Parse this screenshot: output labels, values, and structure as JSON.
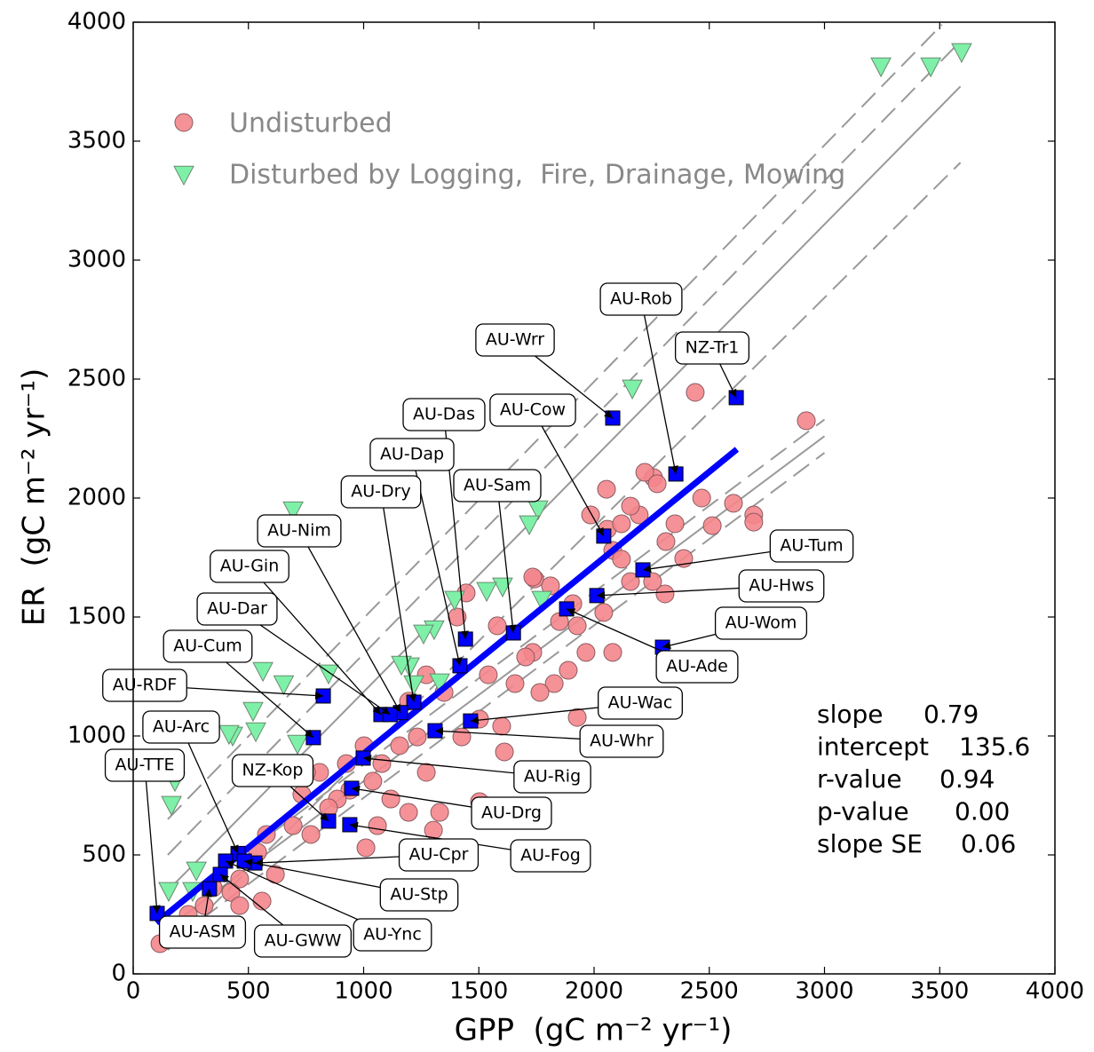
{
  "chart_data": {
    "type": "scatter",
    "xlabel": "GPP  (gC m⁻² yr⁻¹)",
    "ylabel": "ER  (gC m⁻² yr⁻¹)",
    "xlim": [
      0,
      4000
    ],
    "ylim": [
      0,
      4000
    ],
    "xticks": [
      0,
      500,
      1000,
      1500,
      2000,
      2500,
      3000,
      3500,
      4000
    ],
    "yticks": [
      0,
      500,
      1000,
      1500,
      2000,
      2500,
      3000,
      3500,
      4000
    ],
    "legend": "upper left",
    "series": [
      {
        "name": "Undisturbed",
        "marker": "circle",
        "color": "#f4868c",
        "x": [
          2921,
          2439,
          2605,
          2693,
          2693,
          2513,
          2467,
          2389,
          2308,
          2258,
          2220,
          2274,
          2054,
          2058,
          2196,
          2158,
          2119,
          2081,
          2158,
          2254,
          2042,
          1927,
          1965,
          2081,
          1888,
          1927,
          1811,
          1742,
          1850,
          1734,
          1827,
          1765,
          1703,
          1599,
          1611,
          1445,
          1406,
          1541,
          1503,
          1426,
          1349,
          1272,
          1195,
          1233,
          1156,
          1272,
          1079,
          1002,
          925,
          940,
          1040,
          1118,
          1195,
          1330,
          1303,
          1060,
          1010,
          886,
          809,
          732,
          694,
          578,
          540,
          617,
          462,
          424,
          347,
          308,
          239,
          177,
          116,
          462,
          559,
          771,
          848,
          752,
          1580,
          1657,
          1734,
          1908,
          1985,
          2119,
          2312,
          2351,
          1503
        ],
        "values": [
          2325,
          2444,
          1978,
          1929,
          1899,
          1884,
          2000,
          1746,
          1597,
          2086,
          2108,
          2060,
          2037,
          1869,
          1929,
          1966,
          1892,
          1780,
          1649,
          1649,
          1519,
          1463,
          1351,
          1351,
          1276,
          1078,
          1631,
          1660,
          1481,
          1351,
          1220,
          1183,
          1332,
          1041,
          933,
          1601,
          1500,
          1257,
          1071,
          996,
          1183,
          1257,
          1146,
          996,
          959,
          847,
          884,
          959,
          884,
          772,
          810,
          735,
          679,
          679,
          604,
          623,
          530,
          735,
          847,
          754,
          623,
          586,
          511,
          418,
          399,
          343,
          362,
          287,
          250,
          175,
          127,
          287,
          306,
          586,
          698,
          847,
          1463,
          1220,
          1668,
          1556,
          1929,
          1743,
          1817,
          1892,
          724
        ]
      },
      {
        "name": "Disturbed by Logging,  Fire, Drainage, Mowing",
        "marker": "triangle_down",
        "color": "#7ff0a8",
        "x": [
          3245,
          3461,
          3595,
          2166,
          694,
          1757,
          1719,
          1603,
          1534,
          1395,
          1773,
          1306,
          1260,
          1199,
          1164,
          563,
          848,
          653,
          1218,
          1330,
          520,
          432,
          532,
          416,
          713,
          181,
          166,
          274,
          258,
          154,
          725
        ],
        "values": [
          3817,
          3817,
          3877,
          2463,
          1951,
          1955,
          1892,
          1631,
          1612,
          1575,
          1575,
          1451,
          1433,
          1295,
          1302,
          1276,
          1265,
          1220,
          1220,
          1228,
          1108,
          1004,
          1022,
          1011,
          970,
          813,
          713,
          437,
          351,
          351,
          877
        ]
      }
    ],
    "fit_line": {
      "color": "#0000ff",
      "x": [
        100,
        2620
      ],
      "values": [
        215,
        2205
      ]
    },
    "reference_lines": {
      "color": "#999999",
      "lines": [
        {
          "style": "dashed",
          "x": [
            150,
            3510
          ],
          "values": [
            650,
            3990
          ]
        },
        {
          "style": "dashed",
          "x": [
            150,
            3590
          ],
          "values": [
            500,
            3920
          ]
        },
        {
          "style": "solid",
          "x": [
            150,
            3590
          ],
          "values": [
            350,
            3730
          ]
        },
        {
          "style": "dashed",
          "x": [
            150,
            3590
          ],
          "values": [
            100,
            3410
          ]
        },
        {
          "style": "dashed",
          "x": [
            200,
            3000
          ],
          "values": [
            300,
            2330
          ]
        },
        {
          "style": "solid",
          "x": [
            200,
            3000
          ],
          "values": [
            230,
            2260
          ]
        },
        {
          "style": "dashed",
          "x": [
            200,
            3000
          ],
          "values": [
            160,
            2190
          ]
        }
      ]
    },
    "sites": {
      "color": "#0000ff",
      "labels": [
        "AU-Wrr",
        "AU-Rob",
        "NZ-Tr1",
        "AU-Cow",
        "AU-Das",
        "AU-Dap",
        "AU-Dry",
        "AU-Sam",
        "AU-Nim",
        "AU-Gin",
        "AU-Dar",
        "AU-Cum",
        "AU-RDF",
        "AU-Arc",
        "AU-TTE",
        "NZ-Kop",
        "AU-Tum",
        "AU-Hws",
        "AU-Wom",
        "AU-Ade",
        "AU-Wac",
        "AU-Whr",
        "AU-Rig",
        "AU-Drg",
        "AU-Fog",
        "AU-Cpr",
        "AU-Stp",
        "AU-Ync",
        "AU-GWW",
        "AU-ASM"
      ],
      "x": [
        2081,
        2355,
        2617,
        2042,
        1442,
        1418,
        1218,
        1650,
        1160,
        1075,
        1115,
        782,
        825,
        455,
        104,
        848,
        2212,
        2012,
        2297,
        1881,
        1464,
        1310,
        998,
        948,
        940,
        528,
        482,
        401,
        378,
        331
      ],
      "values": [
        2336,
        2101,
        2422,
        1840,
        1407,
        1295,
        1142,
        1433,
        1098,
        1090,
        1090,
        993,
        1168,
        506,
        254,
        642,
        1698,
        1590,
        1373,
        1534,
        1063,
        1022,
        907,
        780,
        627,
        466,
        474,
        474,
        418,
        358
      ]
    },
    "stats": [
      {
        "label": "slope",
        "value": "0.79"
      },
      {
        "label": "intercept",
        "value": "135.6"
      },
      {
        "label": "r-value",
        "value": "0.94"
      },
      {
        "label": "p-value",
        "value": "0.00"
      },
      {
        "label": "slope SE",
        "value": "0.06"
      }
    ]
  }
}
